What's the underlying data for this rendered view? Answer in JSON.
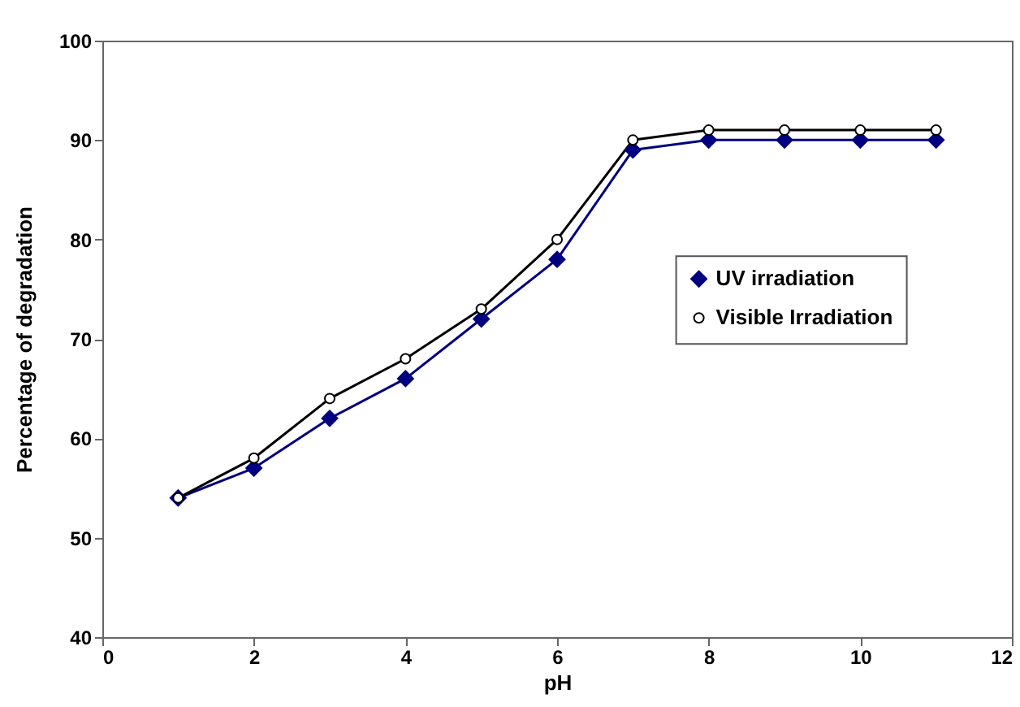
{
  "chart_data": {
    "type": "line",
    "xlabel": "pH",
    "ylabel": "Percentage of degradation",
    "x": [
      1,
      2,
      3,
      4,
      5,
      6,
      7,
      8,
      9,
      10,
      11
    ],
    "series": [
      {
        "name": "UV irradiation",
        "color": "#000080",
        "marker": "diamond",
        "values": [
          54,
          57,
          62,
          66,
          72,
          78,
          89,
          90,
          90,
          90,
          90
        ]
      },
      {
        "name": "Visible Irradiation",
        "color": "#000000",
        "marker": "circle",
        "values": [
          54,
          58,
          64,
          68,
          73,
          80,
          90,
          91,
          91,
          91,
          91
        ]
      }
    ],
    "xlim": [
      0,
      12
    ],
    "xticks": [
      0,
      2,
      4,
      6,
      8,
      10,
      12
    ],
    "ylim": [
      40,
      100
    ],
    "yticks": [
      40,
      50,
      60,
      70,
      80,
      90,
      100
    ],
    "grid": false,
    "legend": "right"
  }
}
